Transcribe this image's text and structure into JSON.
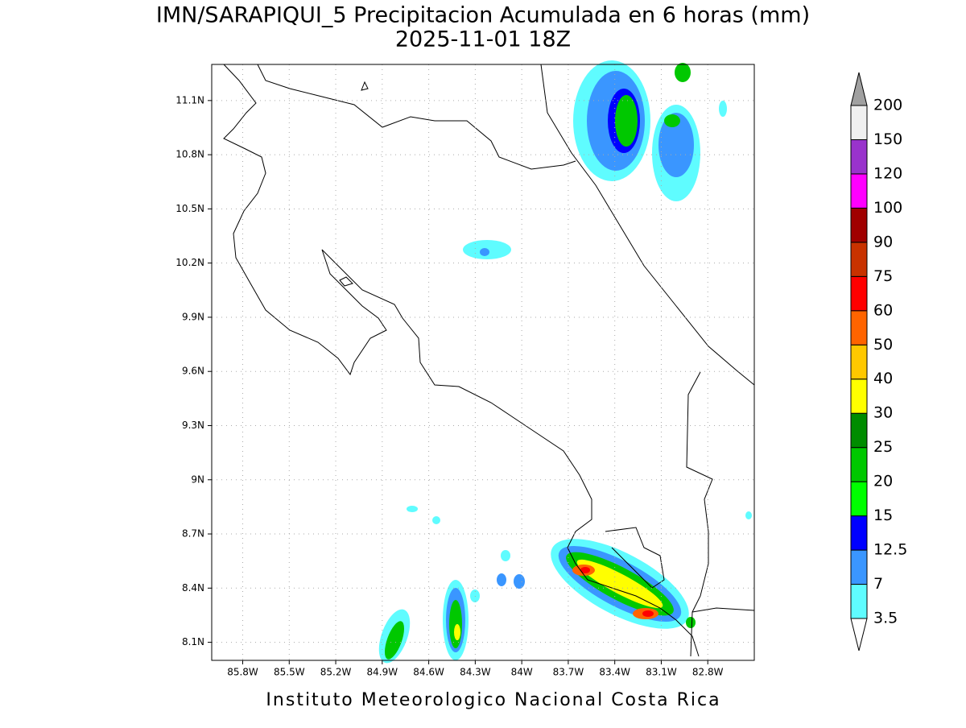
{
  "chart_data": {
    "type": "map",
    "title": "IMN/SARAPIQUI_5 Precipitacion Acumulada en 6 horas (mm)",
    "subtitle": "2025-11-01 18Z",
    "footer": "Instituto Meteorologico Nacional Costa Rica",
    "xlim": [
      -86.0,
      -82.5
    ],
    "ylim": [
      8.0,
      11.3
    ],
    "xticks": [
      {
        "value": -85.8,
        "label": "85.8W"
      },
      {
        "value": -85.5,
        "label": "85.5W"
      },
      {
        "value": -85.2,
        "label": "85.2W"
      },
      {
        "value": -84.9,
        "label": "84.9W"
      },
      {
        "value": -84.6,
        "label": "84.6W"
      },
      {
        "value": -84.3,
        "label": "84.3W"
      },
      {
        "value": -84.0,
        "label": "84W"
      },
      {
        "value": -83.7,
        "label": "83.7W"
      },
      {
        "value": -83.4,
        "label": "83.4W"
      },
      {
        "value": -83.1,
        "label": "83.1W"
      },
      {
        "value": -82.8,
        "label": "82.8W"
      }
    ],
    "yticks": [
      {
        "value": 8.1,
        "label": "8.1N"
      },
      {
        "value": 8.4,
        "label": "8.4N"
      },
      {
        "value": 8.7,
        "label": "8.7N"
      },
      {
        "value": 9.0,
        "label": "9N"
      },
      {
        "value": 9.3,
        "label": "9.3N"
      },
      {
        "value": 9.6,
        "label": "9.6N"
      },
      {
        "value": 9.9,
        "label": "9.9N"
      },
      {
        "value": 10.2,
        "label": "10.2N"
      },
      {
        "value": 10.5,
        "label": "10.5N"
      },
      {
        "value": 10.8,
        "label": "10.8N"
      },
      {
        "value": 11.1,
        "label": "11.1N"
      }
    ],
    "grid": true,
    "colorbar": {
      "levels": [
        3.5,
        7,
        12.5,
        15,
        20,
        25,
        30,
        40,
        50,
        60,
        75,
        90,
        100,
        120,
        150,
        200
      ],
      "level_labels": [
        "3.5",
        "7",
        "12.5",
        "15",
        "20",
        "25",
        "30",
        "40",
        "50",
        "60",
        "75",
        "90",
        "100",
        "120",
        "150",
        "200"
      ],
      "colors": [
        "#ffffff",
        "#5ffcff",
        "#3a96ff",
        "#0000ff",
        "#00ff00",
        "#00c800",
        "#008c00",
        "#ffff00",
        "#ffc800",
        "#ff6400",
        "#ff0000",
        "#c83200",
        "#a00000",
        "#ff00ff",
        "#9933cc",
        "#f0f0f0",
        "#a0a0a0"
      ]
    }
  }
}
